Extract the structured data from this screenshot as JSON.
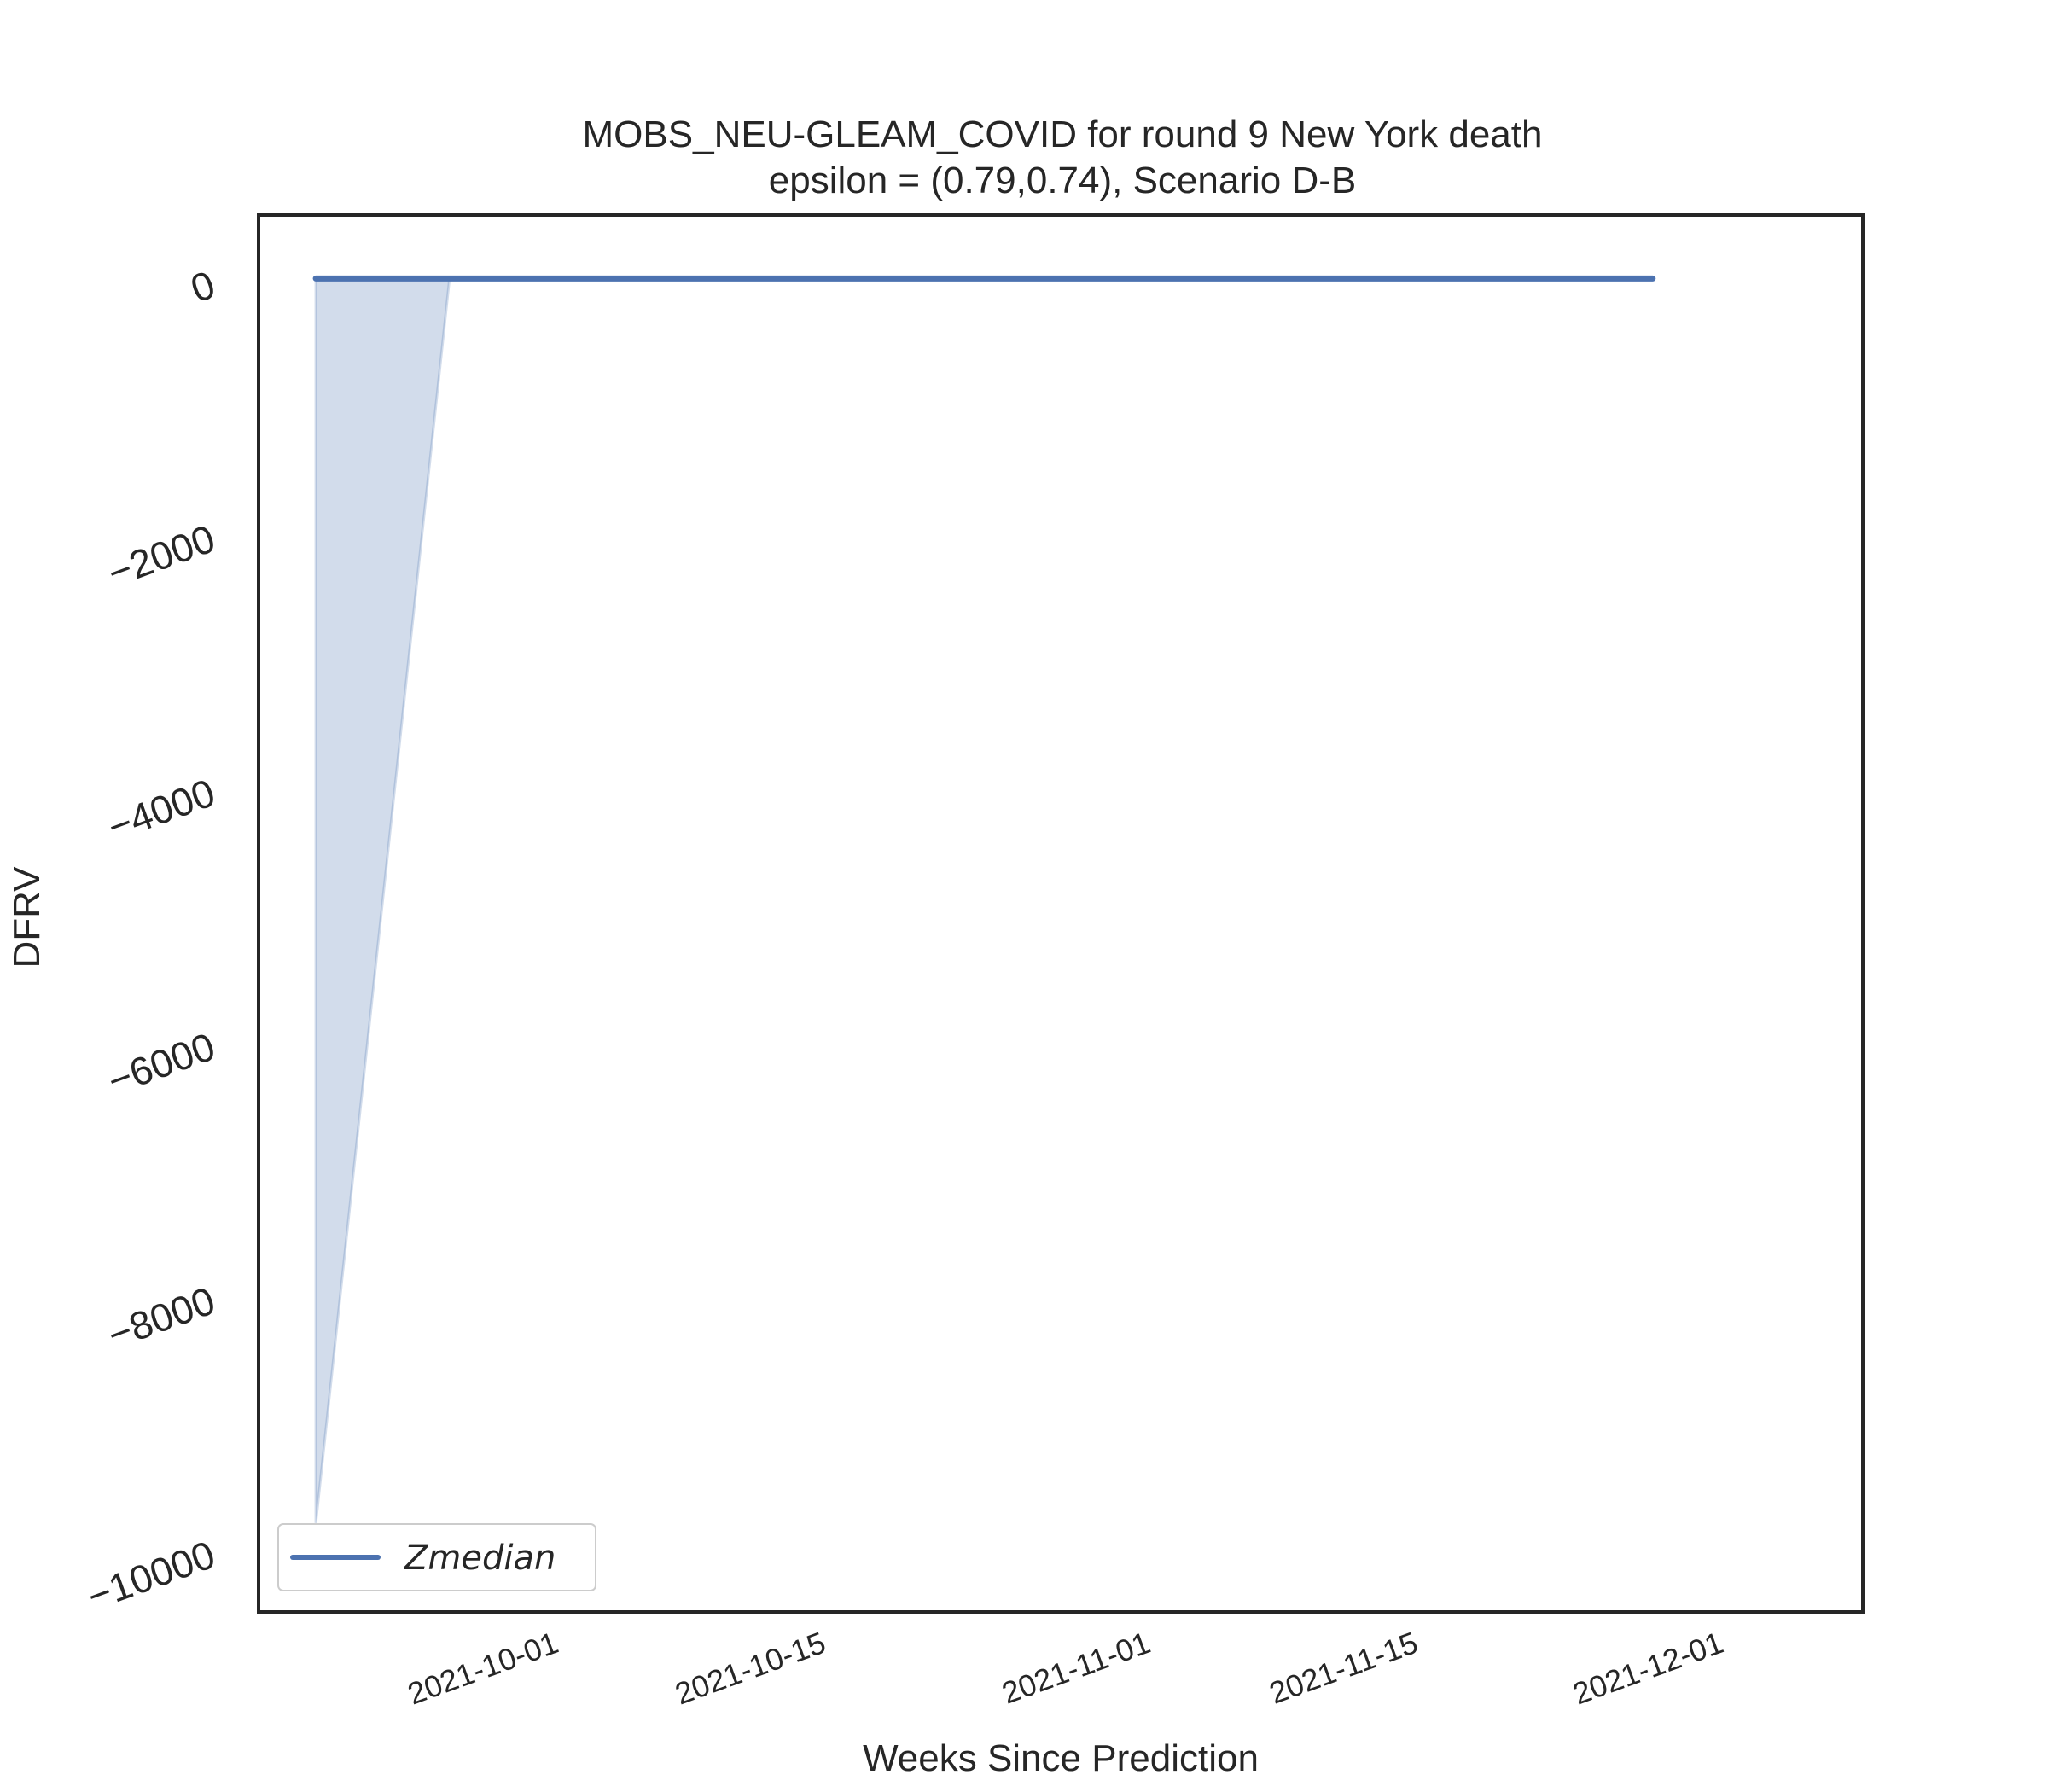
{
  "chart_data": {
    "type": "line",
    "title_line1": "MOBS_NEU-GLEAM_COVID for round 9 New York  death",
    "title_line2": "epsilon = (0.79,0.74), Scenario D-B",
    "xlabel": "Weeks Since Prediction",
    "ylabel": "DFRV",
    "x": [
      "2021-09-19",
      "2021-09-26",
      "2021-10-03",
      "2021-10-10",
      "2021-10-17",
      "2021-10-24",
      "2021-10-31",
      "2021-11-07",
      "2021-11-14",
      "2021-11-21",
      "2021-11-28"
    ],
    "xlim": [
      "2021-09-16",
      "2021-12-09"
    ],
    "ylim": [
      -10500,
      500
    ],
    "yticks": [
      0,
      -2000,
      -4000,
      -6000,
      -8000,
      -10000
    ],
    "ytick_labels": [
      "0",
      "−2000",
      "−4000",
      "−6000",
      "−8000",
      "−10000"
    ],
    "xticks": [
      "2021-10-01",
      "2021-10-15",
      "2021-11-01",
      "2021-11-15",
      "2021-12-01"
    ],
    "series": [
      {
        "name": "Zmedian",
        "color": "#4c72b0",
        "values": [
          0,
          0,
          0,
          0,
          0,
          0,
          0,
          0,
          0,
          0,
          0
        ]
      }
    ],
    "band": {
      "color": "#4c72b0",
      "lower": [
        -9800,
        0,
        0,
        0,
        0,
        0,
        0,
        0,
        0,
        0,
        0
      ],
      "upper": [
        0,
        0,
        0,
        0,
        0,
        0,
        0,
        0,
        0,
        0,
        0
      ]
    },
    "legend_position": "lower-left",
    "grid": false
  }
}
